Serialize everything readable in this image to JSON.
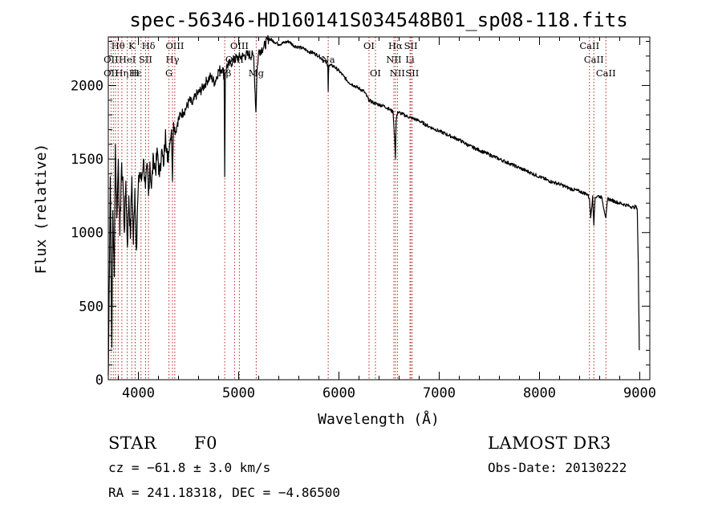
{
  "chart_data": {
    "type": "line",
    "title": "spec-56346-HD160141S034548B01_sp08-118.fits",
    "xlabel": "Wavelength (Å)",
    "ylabel": "Flux (relative)",
    "xlim": [
      3700,
      9100
    ],
    "ylim": [
      0,
      2330
    ],
    "x_ticks": [
      4000,
      5000,
      6000,
      7000,
      8000,
      9000
    ],
    "y_ticks": [
      0,
      500,
      1000,
      1500,
      2000
    ],
    "series": [
      {
        "name": "flux",
        "x": [
          3700,
          3720,
          3735,
          3745,
          3760,
          3770,
          3785,
          3800,
          3815,
          3830,
          3845,
          3860,
          3875,
          3890,
          3905,
          3920,
          3935,
          3950,
          3965,
          3980,
          3995,
          4010,
          4030,
          4050,
          4070,
          4090,
          4101,
          4115,
          4130,
          4150,
          4170,
          4190,
          4210,
          4230,
          4250,
          4270,
          4290,
          4310,
          4330,
          4340,
          4350,
          4370,
          4390,
          4420,
          4450,
          4480,
          4510,
          4540,
          4570,
          4600,
          4640,
          4680,
          4720,
          4760,
          4800,
          4840,
          4855,
          4861,
          4867,
          4880,
          4920,
          4960,
          5000,
          5050,
          5100,
          5150,
          5172,
          5183,
          5200,
          5250,
          5300,
          5350,
          5400,
          5450,
          5500,
          5550,
          5600,
          5650,
          5700,
          5750,
          5800,
          5850,
          5889,
          5893,
          5896,
          5900,
          5950,
          6000,
          6050,
          6100,
          6150,
          6200,
          6250,
          6300,
          6350,
          6400,
          6450,
          6500,
          6540,
          6555,
          6563,
          6570,
          6585,
          6620,
          6680,
          6720,
          6800,
          6900,
          7000,
          7100,
          7200,
          7300,
          7400,
          7500,
          7600,
          7700,
          7800,
          7900,
          8000,
          8100,
          8200,
          8300,
          8400,
          8480,
          8498,
          8510,
          8530,
          8542,
          8555,
          8580,
          8620,
          8662,
          8680,
          8720,
          8760,
          8800,
          8850,
          8900,
          8940,
          8960,
          8975,
          8985,
          8995
        ],
        "values": [
          30,
          1380,
          220,
          1150,
          700,
          1600,
          1100,
          1500,
          980,
          1420,
          1380,
          1000,
          1350,
          900,
          1250,
          960,
          1380,
          920,
          1300,
          880,
          1240,
          1410,
          1350,
          1500,
          1300,
          1450,
          1250,
          1480,
          1300,
          1520,
          1420,
          1550,
          1380,
          1560,
          1450,
          1700,
          1480,
          1600,
          1700,
          1350,
          1750,
          1680,
          1750,
          1800,
          1820,
          1850,
          1900,
          1870,
          1930,
          1950,
          1980,
          2030,
          2060,
          2020,
          2100,
          2120,
          2060,
          1380,
          2080,
          2130,
          2150,
          2180,
          2190,
          2200,
          2210,
          2200,
          1820,
          2100,
          2230,
          2260,
          2320,
          2300,
          2280,
          2290,
          2300,
          2270,
          2260,
          2250,
          2230,
          2220,
          2200,
          2170,
          2140,
          1960,
          2080,
          2140,
          2130,
          2100,
          2060,
          2020,
          2000,
          1980,
          1960,
          1900,
          1880,
          1870,
          1860,
          1840,
          1820,
          1650,
          1500,
          1760,
          1820,
          1810,
          1790,
          1780,
          1760,
          1720,
          1690,
          1660,
          1630,
          1590,
          1560,
          1530,
          1500,
          1470,
          1440,
          1410,
          1380,
          1350,
          1330,
          1300,
          1280,
          1260,
          1230,
          1100,
          1250,
          1050,
          1240,
          1250,
          1240,
          1100,
          1230,
          1220,
          1210,
          1200,
          1190,
          1180,
          1170,
          1180,
          1150,
          800,
          200
        ]
      }
    ],
    "line_labels": [
      {
        "text": "Hθ",
        "wave": 3798,
        "row": 0
      },
      {
        "text": "K",
        "wave": 3934,
        "row": 0
      },
      {
        "text": "Hδ",
        "wave": 4101,
        "row": 0
      },
      {
        "text": "OIII",
        "wave": 4363,
        "row": 0
      },
      {
        "text": "OIII",
        "wave": 5007,
        "row": 0
      },
      {
        "text": "OI",
        "wave": 6300,
        "row": 0
      },
      {
        "text": "Hα",
        "wave": 6563,
        "row": 0
      },
      {
        "text": "SII",
        "wave": 6717,
        "row": 0
      },
      {
        "text": "CaII",
        "wave": 8498,
        "row": 0
      },
      {
        "text": "OII",
        "wave": 3727,
        "row": 1
      },
      {
        "text": "HeI",
        "wave": 3889,
        "row": 1
      },
      {
        "text": "SII",
        "wave": 4072,
        "row": 1
      },
      {
        "text": "Hγ",
        "wave": 4340,
        "row": 1
      },
      {
        "text": "OIII",
        "wave": 4959,
        "row": 1
      },
      {
        "text": "Na",
        "wave": 5893,
        "row": 1
      },
      {
        "text": "NII",
        "wave": 6548,
        "row": 1
      },
      {
        "text": "Li",
        "wave": 6708,
        "row": 1
      },
      {
        "text": "CaII",
        "wave": 8542,
        "row": 1
      },
      {
        "text": "OII",
        "wave": 3727,
        "row": 2
      },
      {
        "text": "Hε",
        "wave": 3970,
        "row": 2
      },
      {
        "text": "Hη",
        "wave": 3835,
        "row": 2
      },
      {
        "text": "H",
        "wave": 3968,
        "row": 2
      },
      {
        "text": "G",
        "wave": 4305,
        "row": 2
      },
      {
        "text": "Hβ",
        "wave": 4861,
        "row": 2
      },
      {
        "text": "Mg",
        "wave": 5175,
        "row": 2
      },
      {
        "text": "OI",
        "wave": 6364,
        "row": 2
      },
      {
        "text": "NII",
        "wave": 6583,
        "row": 2
      },
      {
        "text": "SII",
        "wave": 6731,
        "row": 2
      },
      {
        "text": "CaII",
        "wave": 8662,
        "row": 2
      }
    ],
    "line_markers": [
      3727,
      3750,
      3771,
      3798,
      3835,
      3889,
      3934,
      3968,
      4026,
      4072,
      4101,
      4305,
      4340,
      4363,
      4861,
      4959,
      5007,
      5175,
      5893,
      6300,
      6364,
      6548,
      6563,
      6583,
      6708,
      6717,
      6731,
      8498,
      8542,
      8662
    ]
  },
  "info": {
    "object_type": "STAR",
    "subclass": "F0",
    "survey": "LAMOST DR3",
    "redshift": "cz = −61.8 ± 3.0 km/s",
    "obs_date": "Obs-Date: 20130222",
    "coords": "RA = 241.18318, DEC =  −4.86500"
  },
  "colors": {
    "axes": "#000000",
    "spectrum": "#000000",
    "markers": "#b22222"
  }
}
